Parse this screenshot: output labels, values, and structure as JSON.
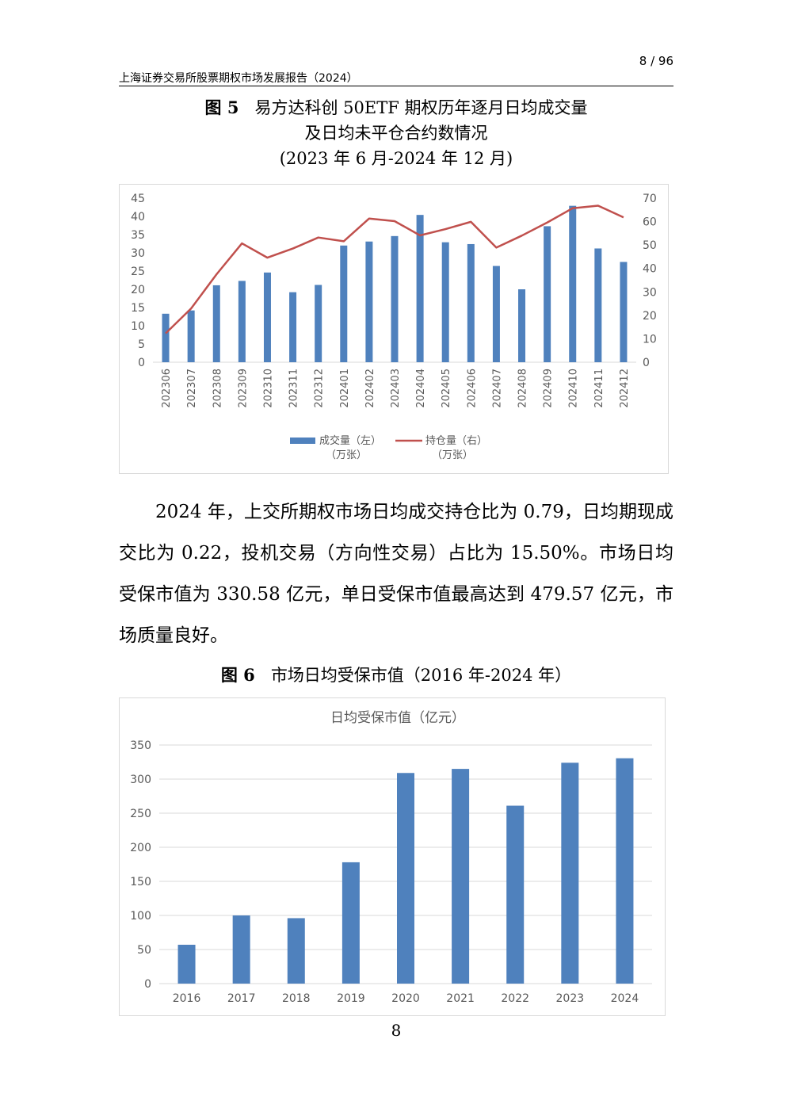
{
  "header": {
    "page": "8 / 96",
    "title": "上海证券交易所股票期权市场发展报告（2024）"
  },
  "figure5": {
    "label": "图 5",
    "title_line1": "易方达科创 50ETF 期权历年逐月日均成交量",
    "title_line2": "及日均未平仓合约数情况",
    "title_line3": "(2023 年 6 月-2024 年 12 月)"
  },
  "paragraph": "2024 年，上交所期权市场日均成交持仓比为 0.79，日均期现成交比为 0.22，投机交易（方向性交易）占比为 15.50%。市场日均受保市值为 330.58 亿元，单日受保市值最高达到 479.57 亿元，市场质量良好。",
  "figure6": {
    "label": "图 6",
    "title": "市场日均受保市值（2016 年-2024 年）"
  },
  "footer": {
    "page": "8"
  },
  "chart_data": [
    {
      "type": "bar+line",
      "categories": [
        "202306",
        "202307",
        "202308",
        "202309",
        "202310",
        "202311",
        "202312",
        "202401",
        "202402",
        "202403",
        "202404",
        "202405",
        "202406",
        "202407",
        "202408",
        "202409",
        "202410",
        "202411",
        "202412"
      ],
      "series": [
        {
          "name": "成交量（左）（万张）",
          "type": "bar",
          "axis": "left",
          "color": "#4F81BD",
          "values": [
            13.3,
            14.2,
            21.1,
            22.3,
            24.6,
            19.2,
            21.2,
            32.0,
            33.1,
            34.6,
            40.4,
            32.9,
            32.4,
            26.4,
            20.0,
            37.3,
            42.9,
            31.2,
            27.5
          ]
        },
        {
          "name": "持仓量（右）（万张）",
          "type": "line",
          "axis": "right",
          "color": "#C0504D",
          "values": [
            12.3,
            22.9,
            37.5,
            50.7,
            44.6,
            48.5,
            53.2,
            51.6,
            61.3,
            60.2,
            54.1,
            56.8,
            59.9,
            48.9,
            54.0,
            59.6,
            65.7,
            66.8,
            61.8
          ]
        }
      ],
      "yleft": {
        "ylim": [
          0,
          45
        ],
        "ticks": [
          "0",
          "5",
          "10",
          "15",
          "20",
          "25",
          "30",
          "35",
          "40",
          "45"
        ]
      },
      "yright": {
        "ylim": [
          0,
          70
        ],
        "ticks": [
          "0",
          "10",
          "20",
          "30",
          "40",
          "50",
          "60",
          "70"
        ]
      },
      "legend": {
        "placement": "bottom",
        "bar_label_1": "成交量（左）",
        "bar_label_2": "（万张）",
        "line_label_1": "持仓量（右）",
        "line_label_2": "（万张）"
      },
      "grid": false
    },
    {
      "type": "bar",
      "title": "日均受保市值（亿元）",
      "categories": [
        "2016",
        "2017",
        "2018",
        "2019",
        "2020",
        "2021",
        "2022",
        "2023",
        "2024"
      ],
      "values": [
        57,
        100,
        96,
        178,
        309,
        315,
        261,
        324,
        330.58
      ],
      "ylim": [
        0,
        350
      ],
      "ticks": [
        "0",
        "50",
        "100",
        "150",
        "200",
        "250",
        "300",
        "350"
      ],
      "color": "#4F81BD",
      "grid": true
    }
  ]
}
